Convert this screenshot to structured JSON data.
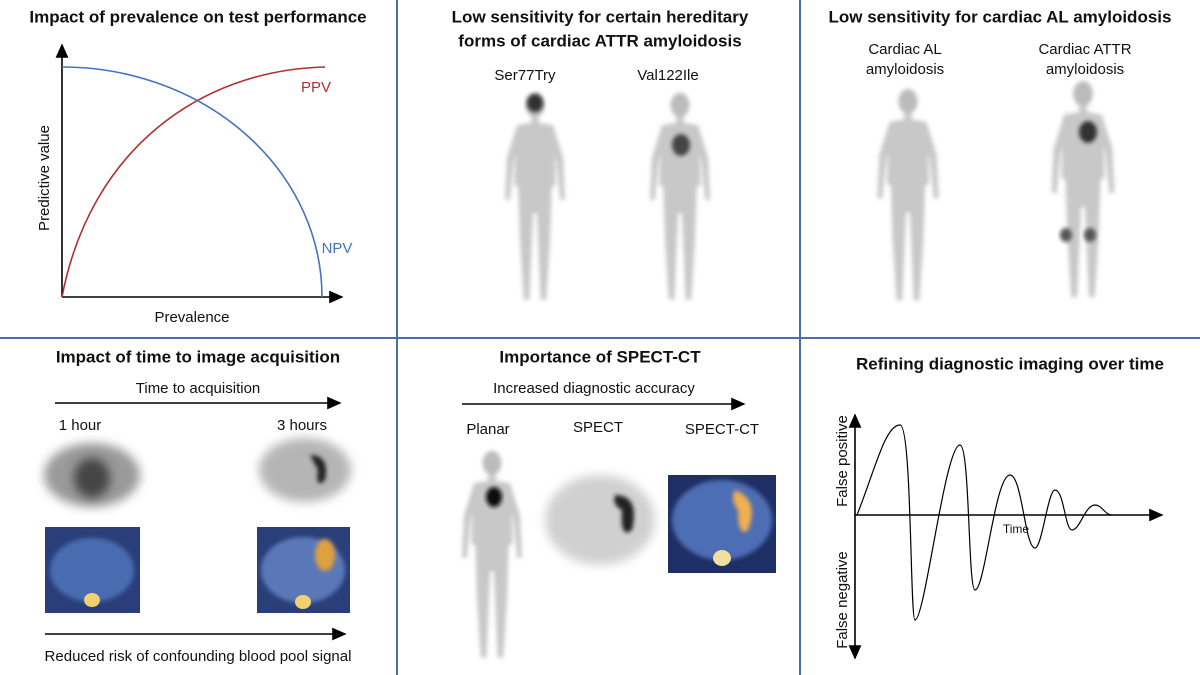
{
  "panels": [
    {
      "title": [
        "Impact of prevalence on test performance"
      ],
      "y_axis_label": "Predictive value",
      "x_axis_label": "Prevalence",
      "curve_labels": [
        "PPV",
        "NPV"
      ]
    },
    {
      "title": [
        "Low sensitivity for certain hereditary",
        "forms of cardiac ATTR amyloidosis"
      ],
      "image_labels": [
        [
          "Ser77Try"
        ],
        [
          "Val122Ile"
        ]
      ]
    },
    {
      "title": [
        "Low sensitivity for cardiac AL amyloidosis"
      ],
      "image_labels": [
        [
          "Cardiac AL",
          "amyloidosis"
        ],
        [
          "Cardiac ATTR",
          "amyloidosis"
        ]
      ]
    },
    {
      "title": [
        "Impact of time to image acquisition"
      ],
      "top_arrow_label": "Time to acquisition",
      "image_labels": [
        [
          "1 hour"
        ],
        [
          "3 hours"
        ]
      ],
      "bottom_arrow_label": "Reduced risk of confounding blood pool signal"
    },
    {
      "title": [
        "Importance of SPECT-CT"
      ],
      "top_arrow_label": "Increased diagnostic accuracy",
      "image_labels": [
        [
          "Planar"
        ],
        [
          "SPECT"
        ],
        [
          "SPECT-CT"
        ]
      ]
    },
    {
      "title": [
        "Refining diagnostic imaging over time"
      ],
      "y_axis_top_label": "False positive",
      "y_axis_bottom_label": "False negative",
      "x_axis_label": "Time"
    }
  ]
}
